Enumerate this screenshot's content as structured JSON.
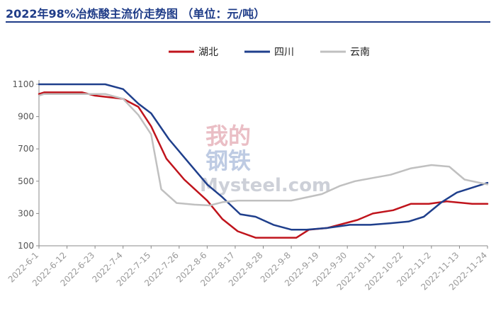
{
  "title": "2022年98%冶炼酸主流价走势图  （单位：元/吨）",
  "watermark": {
    "line1": "我的",
    "line2": "钢铁",
    "brand": "Mysteel.com"
  },
  "chart_data": {
    "type": "line",
    "ylim": [
      100,
      1100
    ],
    "yticks": [
      100,
      300,
      500,
      700,
      900,
      1100
    ],
    "grid": false,
    "legend_position": "top-center",
    "x": [
      "2022-6-1",
      "2022-6-12",
      "2022-6-23",
      "2022-7-4",
      "2022-7-15",
      "2022-7-26",
      "2022-8-6",
      "2022-8-17",
      "2022-8-28",
      "2022-9-8",
      "2022-9-19",
      "2022-9-30",
      "2022-10-11",
      "2022-10-22",
      "2022-11-2",
      "2022-11-13",
      "2022-11-24"
    ],
    "x_range": [
      "2022-6-1",
      "2022-11-24"
    ],
    "series": [
      {
        "name": "湖北",
        "color": "#c0141c",
        "points": [
          [
            "2022-6-1",
            1040
          ],
          [
            "2022-6-3",
            1050
          ],
          [
            "2022-6-18",
            1050
          ],
          [
            "2022-6-23",
            1030
          ],
          [
            "2022-7-4",
            1010
          ],
          [
            "2022-7-10",
            960
          ],
          [
            "2022-7-15",
            840
          ],
          [
            "2022-7-21",
            640
          ],
          [
            "2022-7-28",
            510
          ],
          [
            "2022-8-6",
            380
          ],
          [
            "2022-8-12",
            265
          ],
          [
            "2022-8-18",
            190
          ],
          [
            "2022-8-25",
            150
          ],
          [
            "2022-9-10",
            150
          ],
          [
            "2022-9-15",
            200
          ],
          [
            "2022-9-22",
            210
          ],
          [
            "2022-10-4",
            260
          ],
          [
            "2022-10-10",
            300
          ],
          [
            "2022-10-18",
            320
          ],
          [
            "2022-10-25",
            360
          ],
          [
            "2022-11-1",
            360
          ],
          [
            "2022-11-8",
            375
          ],
          [
            "2022-11-18",
            360
          ],
          [
            "2022-11-24",
            360
          ]
        ]
      },
      {
        "name": "四川",
        "color": "#1f3f8c",
        "points": [
          [
            "2022-6-1",
            1100
          ],
          [
            "2022-6-27",
            1100
          ],
          [
            "2022-7-4",
            1070
          ],
          [
            "2022-7-10",
            980
          ],
          [
            "2022-7-15",
            920
          ],
          [
            "2022-7-22",
            760
          ],
          [
            "2022-7-30",
            610
          ],
          [
            "2022-8-6",
            480
          ],
          [
            "2022-8-12",
            400
          ],
          [
            "2022-8-19",
            295
          ],
          [
            "2022-8-25",
            280
          ],
          [
            "2022-9-1",
            230
          ],
          [
            "2022-9-8",
            200
          ],
          [
            "2022-9-14",
            200
          ],
          [
            "2022-9-22",
            210
          ],
          [
            "2022-10-1",
            230
          ],
          [
            "2022-10-9",
            230
          ],
          [
            "2022-10-17",
            240
          ],
          [
            "2022-10-24",
            250
          ],
          [
            "2022-10-30",
            280
          ],
          [
            "2022-11-6",
            370
          ],
          [
            "2022-11-12",
            430
          ],
          [
            "2022-11-24",
            490
          ]
        ]
      },
      {
        "name": "云南",
        "color": "#c0c0c0",
        "points": [
          [
            "2022-6-1",
            1030
          ],
          [
            "2022-6-3",
            1040
          ],
          [
            "2022-6-27",
            1040
          ],
          [
            "2022-7-4",
            1010
          ],
          [
            "2022-7-10",
            910
          ],
          [
            "2022-7-15",
            790
          ],
          [
            "2022-7-19",
            450
          ],
          [
            "2022-7-25",
            365
          ],
          [
            "2022-8-1",
            355
          ],
          [
            "2022-8-7",
            350
          ],
          [
            "2022-8-12",
            370
          ],
          [
            "2022-8-18",
            380
          ],
          [
            "2022-9-8",
            380
          ],
          [
            "2022-9-14",
            400
          ],
          [
            "2022-9-20",
            420
          ],
          [
            "2022-9-27",
            470
          ],
          [
            "2022-10-3",
            500
          ],
          [
            "2022-10-10",
            520
          ],
          [
            "2022-10-17",
            540
          ],
          [
            "2022-10-25",
            580
          ],
          [
            "2022-11-2",
            600
          ],
          [
            "2022-11-9",
            590
          ],
          [
            "2022-11-15",
            510
          ],
          [
            "2022-11-24",
            480
          ]
        ]
      }
    ]
  }
}
